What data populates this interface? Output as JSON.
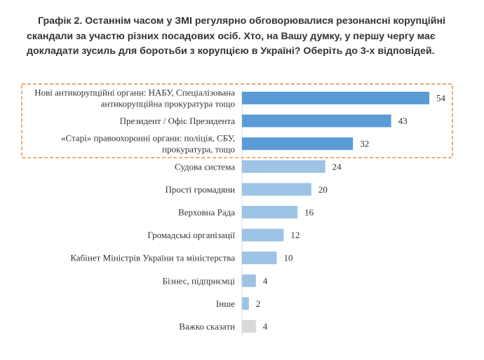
{
  "page": {
    "title": "Графік 2. Останнім часом у ЗМІ регулярно обговорювалися резонансні корупційні скандали за участю різних посадових осіб. Хто, на Вашу думку, у першу чергу має докладати зусиль для боротьби з корупцією в Україні? Оберіть до 3-х відповідей."
  },
  "chart_data": {
    "type": "bar",
    "orientation": "horizontal",
    "title": "Графік 2. Останнім часом у ЗМІ регулярно обговорювалися резонансні корупційні скандали за участю різних посадових осіб. Хто, на Вашу думку, у першу чергу має докладати зусиль для боротьби з корупцією в Україні? Оберіть до 3-х відповідей.",
    "categories": [
      [
        "Нові антикорупційні органи: НАБУ, Спеціалізована",
        "антикорупційна прокуратура тощо"
      ],
      [
        "Президент / Офіс Президента"
      ],
      [
        "«Старі» правоохоронні органи: поліція, СБУ,",
        "прокуратура, тощо"
      ],
      [
        "Судова система"
      ],
      [
        "Прості громадяни"
      ],
      [
        "Верховна Рада"
      ],
      [
        "Громадські організації"
      ],
      [
        "Кабінет Міністрів України та міністерства"
      ],
      [
        "Бізнес, підприємці"
      ],
      [
        "Інше"
      ],
      [
        "Важко сказати"
      ]
    ],
    "values": [
      54,
      43,
      32,
      24,
      20,
      16,
      12,
      10,
      4,
      2,
      4
    ],
    "highlighted": [
      true,
      true,
      true,
      false,
      false,
      false,
      false,
      false,
      false,
      false,
      false
    ],
    "colors": {
      "highlight": "#5b9bd5",
      "normal": "#9dc3e6",
      "neutral": "#d9d9d9",
      "highlight_box": "#e08a3c"
    },
    "xlabel": "",
    "ylabel": "",
    "xlim": [
      0,
      54
    ],
    "grid": false,
    "legend": "none"
  }
}
